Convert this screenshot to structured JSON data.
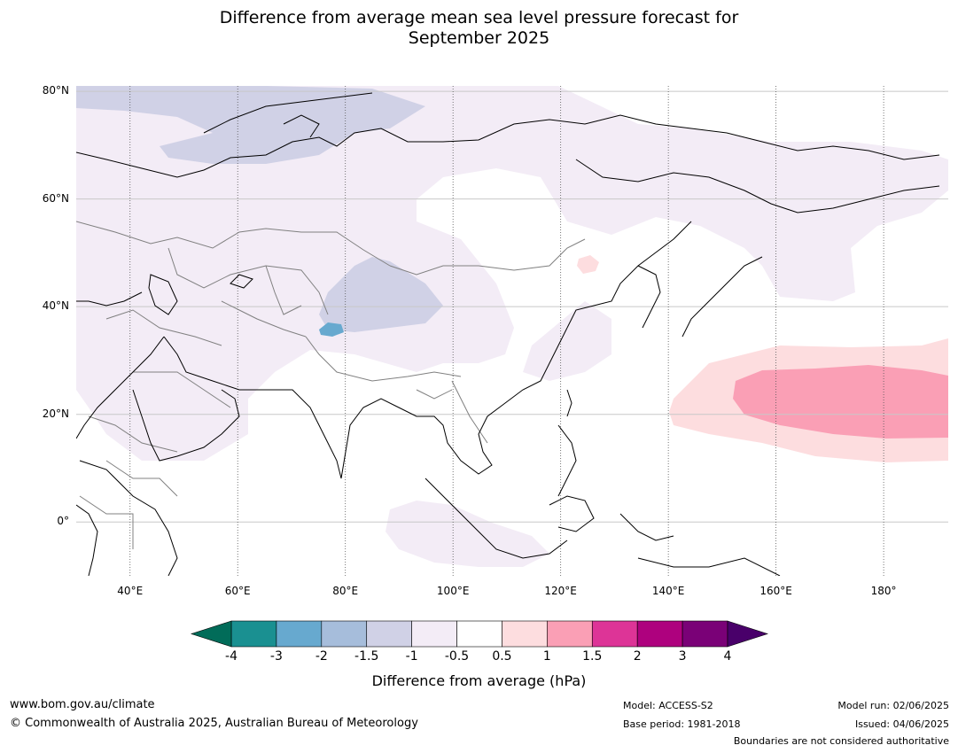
{
  "title": {
    "line1": "Difference from average mean sea level pressure forecast for",
    "line2": "September 2025"
  },
  "map": {
    "extent": {
      "lon_min": 30,
      "lon_max": 192,
      "lat_min": -10,
      "lat_max": 81
    },
    "lat_labels": [
      {
        "lat": 80,
        "text": "80°N"
      },
      {
        "lat": 60,
        "text": "60°N"
      },
      {
        "lat": 40,
        "text": "40°N"
      },
      {
        "lat": 20,
        "text": "20°N"
      },
      {
        "lat": 0,
        "text": "0°"
      }
    ],
    "lon_labels": [
      {
        "lon": 40,
        "text": "40°E"
      },
      {
        "lon": 60,
        "text": "60°E"
      },
      {
        "lon": 80,
        "text": "80°E"
      },
      {
        "lon": 100,
        "text": "100°E"
      },
      {
        "lon": 120,
        "text": "120°E"
      },
      {
        "lon": 140,
        "text": "140°E"
      },
      {
        "lon": 160,
        "text": "160°E"
      },
      {
        "lon": 180,
        "text": "180°"
      }
    ],
    "fill_colors": {
      "neg_small": "#f3ecf6",
      "neg_med": "#d0d1e6",
      "neg_high": "#a6bddb",
      "neg_dot": "#67a9cf",
      "pos_small": "#fddddf",
      "pos_med": "#fa9fb5"
    },
    "coast_color": "#000000",
    "border_color": "#808080"
  },
  "colorbar": {
    "ticks": [
      "-4",
      "-3",
      "-2",
      "-1.5",
      "-1",
      "-0.5",
      "0.5",
      "1",
      "1.5",
      "2",
      "3",
      "4"
    ],
    "colors": [
      "#1a9091",
      "#67a9cf",
      "#a6bddb",
      "#d0d1e6",
      "#f3ecf6",
      "#ffffff",
      "#fddddf",
      "#fa9fb5",
      "#dd3497",
      "#ae017e",
      "#7a0177"
    ],
    "under_color": "#016c59",
    "over_color": "#49006a",
    "label": "Difference from average (hPa)"
  },
  "footer": {
    "url": "www.bom.gov.au/climate",
    "copyright": "© Commonwealth of Australia 2025, Australian Bureau of Meteorology",
    "model": "Model: ACCESS-S2",
    "base_period": "Base period: 1981-2018",
    "model_run": "Model run: 02/06/2025",
    "issued": "Issued: 04/06/2025",
    "disclaimer": "Boundaries are not considered authoritative"
  }
}
